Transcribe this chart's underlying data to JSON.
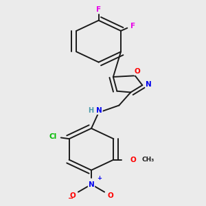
{
  "bg_color": "#ebebeb",
  "bond_color": "#1a1a1a",
  "atom_colors": {
    "F": "#e800e8",
    "O": "#ff0000",
    "N": "#0000ee",
    "Cl": "#00bb00",
    "C": "#1a1a1a",
    "H": "#4a9aaa"
  },
  "figsize": [
    3.0,
    3.0
  ],
  "dpi": 100
}
